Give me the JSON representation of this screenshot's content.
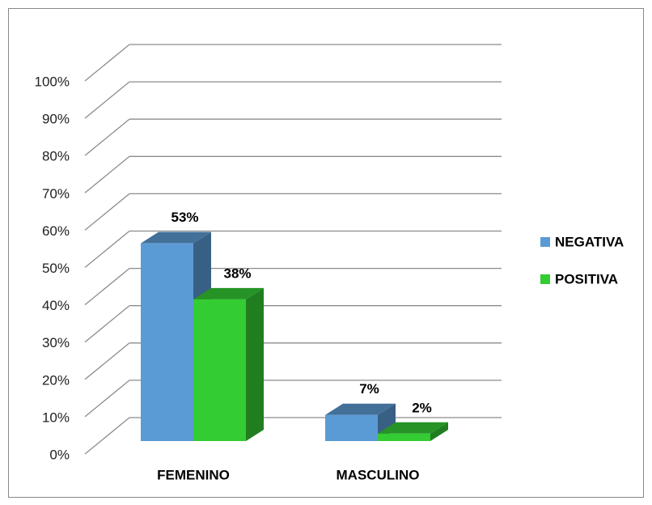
{
  "chart_data": {
    "type": "bar3d",
    "categories": [
      "FEMENINO",
      "MASCULINO"
    ],
    "series": [
      {
        "name": "NEGATIVA",
        "color": "#5b9bd5",
        "values": [
          53,
          7
        ],
        "value_labels": [
          "53%",
          "7%"
        ]
      },
      {
        "name": "POSITIVA",
        "color": "#33cc33",
        "values": [
          38,
          2
        ],
        "value_labels": [
          "38%",
          "2%"
        ]
      }
    ],
    "ylim": [
      0,
      100
    ],
    "yticks": [
      {
        "value": 0,
        "label": "0%"
      },
      {
        "value": 10,
        "label": "10%"
      },
      {
        "value": 20,
        "label": "20%"
      },
      {
        "value": 30,
        "label": "30%"
      },
      {
        "value": 40,
        "label": "40%"
      },
      {
        "value": 50,
        "label": "50%"
      },
      {
        "value": 60,
        "label": "60%"
      },
      {
        "value": 70,
        "label": "70%"
      },
      {
        "value": 80,
        "label": "80%"
      },
      {
        "value": 90,
        "label": "90%"
      },
      {
        "value": 100,
        "label": "100%"
      }
    ],
    "grid": true,
    "legend": "right"
  }
}
